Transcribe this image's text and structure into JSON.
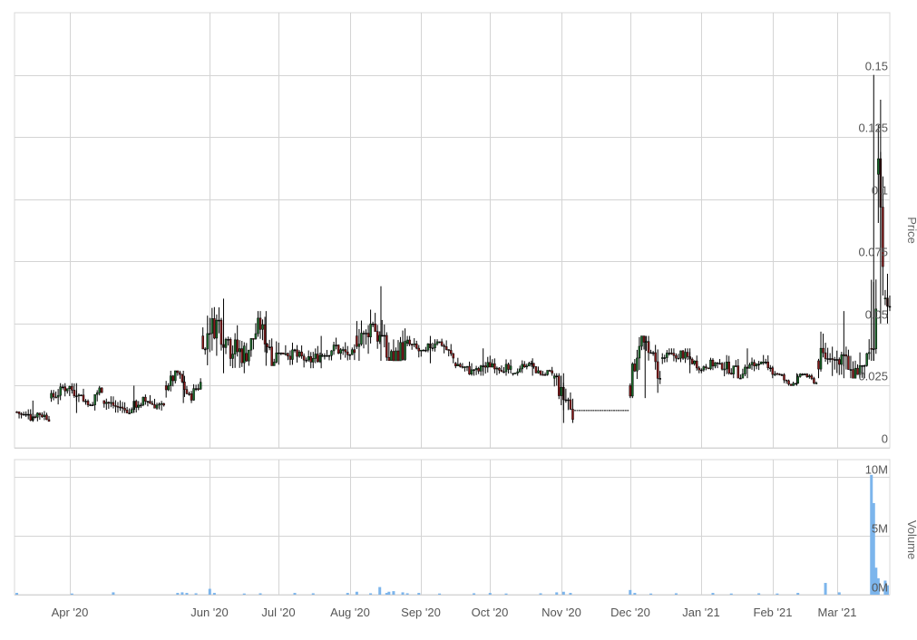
{
  "chart_data": [
    {
      "type": "candlestick",
      "panel": "price",
      "ylabel": "Price",
      "ylim": [
        0,
        0.175
      ],
      "ytick_values": [
        0,
        0.025,
        0.05,
        0.075,
        0.1,
        0.125,
        0.15
      ],
      "ytick_labels": [
        "0",
        "0.025",
        "0.05",
        "0.075",
        "0.1",
        "0.125",
        "0.15"
      ],
      "grid": true,
      "colors": {
        "up": "#1a6b2a",
        "down": "#8b1a1a",
        "wick": "#000000",
        "grid": "#d4d4d4"
      },
      "series": [
        {
          "name": "",
          "segments": [
            {
              "start": "2020-03-09",
              "end": "2020-03-23",
              "low": 0.0105,
              "high": 0.019,
              "levels": [
                0.0145,
                0.0115,
                0.014,
                0.012
              ]
            },
            {
              "start": "2020-03-24",
              "end": "2020-04-15",
              "low": 0.014,
              "high": 0.026,
              "levels": [
                0.02,
                0.025,
                0.018,
                0.024
              ]
            },
            {
              "start": "2020-04-16",
              "end": "2020-05-12",
              "low": 0.014,
              "high": 0.025,
              "levels": [
                0.019,
                0.015,
                0.019,
                0.016
              ]
            },
            {
              "start": "2020-05-13",
              "end": "2020-05-28",
              "low": 0.018,
              "high": 0.031,
              "levels": [
                0.025,
                0.03,
                0.02,
                0.026
              ]
            },
            {
              "start": "2020-05-29",
              "end": "2020-06-16",
              "low": 0.03,
              "high": 0.06,
              "levels": [
                0.045,
                0.05,
                0.04,
                0.038
              ]
            },
            {
              "start": "2020-06-17",
              "end": "2020-07-04",
              "low": 0.033,
              "high": 0.055,
              "levels": [
                0.038,
                0.05,
                0.036,
                0.04
              ]
            },
            {
              "start": "2020-07-05",
              "end": "2020-08-03",
              "low": 0.032,
              "high": 0.045,
              "levels": [
                0.038,
                0.035,
                0.04,
                0.037
              ]
            },
            {
              "start": "2020-08-04",
              "end": "2020-08-25",
              "low": 0.035,
              "high": 0.065,
              "levels": [
                0.045,
                0.05,
                0.035,
                0.04
              ]
            },
            {
              "start": "2020-08-26",
              "end": "2020-09-15",
              "low": 0.034,
              "high": 0.045,
              "levels": [
                0.042,
                0.038,
                0.044,
                0.036
              ]
            },
            {
              "start": "2020-09-16",
              "end": "2020-10-10",
              "low": 0.029,
              "high": 0.04,
              "levels": [
                0.034,
                0.03,
                0.034,
                0.031
              ]
            },
            {
              "start": "2020-10-11",
              "end": "2020-10-28",
              "low": 0.029,
              "high": 0.036,
              "levels": [
                0.03,
                0.034,
                0.03,
                0.03
              ]
            },
            {
              "start": "2020-10-29",
              "end": "2020-11-06",
              "low": 0.01,
              "high": 0.03,
              "levels": [
                0.028,
                0.022,
                0.018,
                0.013
              ]
            },
            {
              "start": "2020-11-07",
              "end": "2020-11-30",
              "low": 0.015,
              "high": 0.015,
              "levels": [
                0.015
              ]
            },
            {
              "start": "2020-12-01",
              "end": "2020-12-14",
              "low": 0.02,
              "high": 0.045,
              "levels": [
                0.025,
                0.045,
                0.035,
                0.03
              ]
            },
            {
              "start": "2020-12-15",
              "end": "2021-01-08",
              "low": 0.03,
              "high": 0.04,
              "levels": [
                0.036,
                0.038,
                0.033,
                0.034
              ]
            },
            {
              "start": "2021-01-09",
              "end": "2021-02-02",
              "low": 0.028,
              "high": 0.04,
              "levels": [
                0.034,
                0.03,
                0.034,
                0.03
              ]
            },
            {
              "start": "2021-02-03",
              "end": "2021-02-20",
              "low": 0.025,
              "high": 0.03,
              "levels": [
                0.03,
                0.025,
                0.03,
                0.026
              ]
            },
            {
              "start": "2021-02-21",
              "end": "2021-03-15",
              "low": 0.028,
              "high": 0.055,
              "levels": [
                0.035,
                0.04,
                0.03,
                0.034
              ]
            },
            {
              "start": "2021-03-16",
              "end": "2021-03-18",
              "low": 0.035,
              "high": 0.15,
              "levels": [
                0.04,
                0.11,
                0.06
              ]
            },
            {
              "start": "2021-03-19",
              "end": "2021-03-21",
              "low": 0.05,
              "high": 0.14,
              "levels": [
                0.11,
                0.06
              ]
            },
            {
              "start": "2021-03-22",
              "end": "2021-03-24",
              "low": 0.05,
              "high": 0.07,
              "levels": [
                0.06,
                0.055,
                0.06
              ]
            }
          ]
        }
      ]
    },
    {
      "type": "bar",
      "panel": "volume",
      "ylabel": "Volume",
      "ylim": [
        0,
        11500000
      ],
      "ytick_values": [
        0,
        5000000,
        10000000
      ],
      "ytick_labels": [
        "0M",
        "5M",
        "10M"
      ],
      "grid": true,
      "colors": {
        "bars": "#7cb5ec",
        "grid": "#d4d4d4"
      },
      "x": [
        "2020-03-09",
        "2020-04-02",
        "2020-04-20",
        "2020-05-18",
        "2020-05-20",
        "2020-05-22",
        "2020-05-26",
        "2020-06-01",
        "2020-06-03",
        "2020-06-16",
        "2020-06-23",
        "2020-07-08",
        "2020-07-16",
        "2020-07-31",
        "2020-08-04",
        "2020-08-10",
        "2020-08-14",
        "2020-08-17",
        "2020-08-18",
        "2020-08-20",
        "2020-08-24",
        "2020-08-26",
        "2020-08-31",
        "2020-09-09",
        "2020-09-24",
        "2020-10-01",
        "2020-10-08",
        "2020-10-23",
        "2020-10-30",
        "2020-11-02",
        "2020-11-05",
        "2020-12-01",
        "2020-12-03",
        "2020-12-10",
        "2020-12-21",
        "2021-01-06",
        "2021-01-14",
        "2021-01-26",
        "2021-02-03",
        "2021-02-12",
        "2021-02-24",
        "2021-03-02",
        "2021-03-16",
        "2021-03-17",
        "2021-03-18",
        "2021-03-19",
        "2021-03-22",
        "2021-03-23"
      ],
      "values": [
        150000,
        100000,
        200000,
        150000,
        200000,
        150000,
        120000,
        500000,
        150000,
        100000,
        120000,
        150000,
        120000,
        150000,
        250000,
        120000,
        650000,
        150000,
        250000,
        300000,
        200000,
        120000,
        150000,
        100000,
        120000,
        150000,
        100000,
        120000,
        200000,
        250000,
        150000,
        400000,
        150000,
        100000,
        120000,
        150000,
        100000,
        120000,
        100000,
        150000,
        1000000,
        200000,
        10200000,
        7800000,
        2300000,
        1400000,
        1200000,
        800000
      ]
    }
  ],
  "x_axis": {
    "tick_dates": [
      "2020-04-01",
      "2020-06-01",
      "2020-07-01",
      "2020-08-01",
      "2020-09-01",
      "2020-10-01",
      "2020-11-01",
      "2020-12-01",
      "2021-01-01",
      "2021-02-01",
      "2021-03-01"
    ],
    "tick_labels": [
      "Apr '20",
      "Jun '20",
      "Jul '20",
      "Aug '20",
      "Sep '20",
      "Oct '20",
      "Nov '20",
      "Dec '20",
      "Jan '21",
      "Feb '21",
      "Mar '21"
    ]
  }
}
